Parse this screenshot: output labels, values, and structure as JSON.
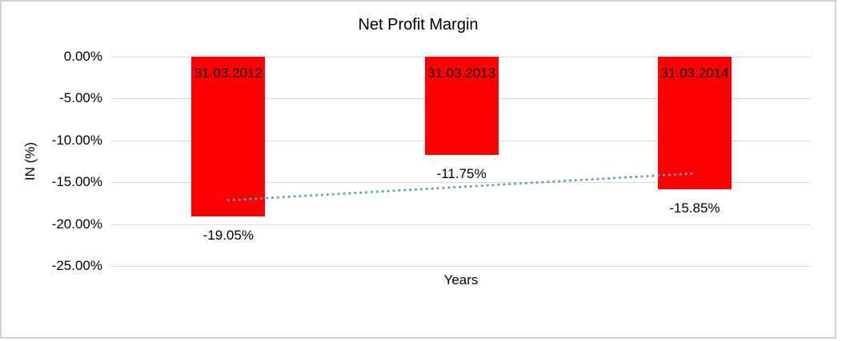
{
  "chart_data": {
    "type": "bar",
    "title": "Net Profit Margin",
    "xlabel": "Years",
    "ylabel": "IN (%)",
    "categories": [
      "31.03.2012",
      "31.03.2013",
      "31.03.2014"
    ],
    "values": [
      -19.05,
      -11.75,
      -15.85
    ],
    "value_labels": [
      "-19.05%",
      "-11.75%",
      "-15.85%"
    ],
    "ylim": [
      -25,
      0
    ],
    "ytick_labels": [
      "0.00%",
      "-5.00%",
      "-10.00%",
      "-15.00%",
      "-20.00%",
      "-25.00%"
    ],
    "grid": true,
    "legend": "none",
    "bar_color": "#ff0000",
    "gridline_color": "#d9d9d9",
    "text_color": "#000000",
    "trendline": {
      "type": "linear",
      "style": "dotted",
      "color": "#5b9bd5",
      "start_value": -17.15,
      "end_value": -13.95
    }
  }
}
